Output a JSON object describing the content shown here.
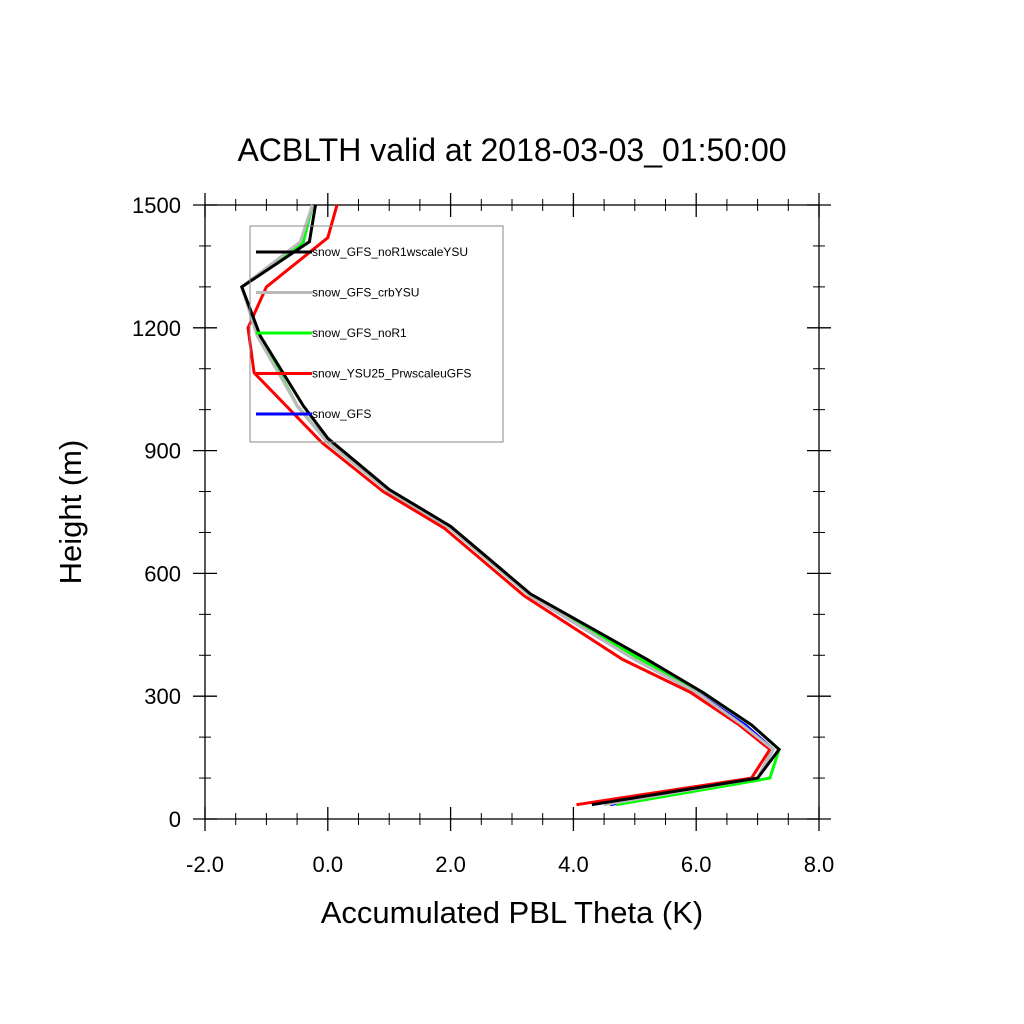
{
  "chart_data": {
    "type": "line",
    "title": "ACBLTH valid at 2018-03-03_01:50:00",
    "xlabel": "Accumulated PBL Theta (K)",
    "ylabel": "Height (m)",
    "xlim": [
      -2.0,
      8.0
    ],
    "ylim": [
      0,
      1500
    ],
    "xticks": [
      -2.0,
      0.0,
      2.0,
      4.0,
      6.0,
      8.0
    ],
    "xtick_labels": [
      "-2.0",
      "0.0",
      "2.0",
      "4.0",
      "6.0",
      "8.0"
    ],
    "yticks": [
      0,
      300,
      600,
      900,
      1200,
      1500
    ],
    "ytick_labels": [
      "0",
      "300",
      "600",
      "900",
      "1200",
      "1500"
    ],
    "legend_placement": "top-left",
    "series": [
      {
        "name": "snow_GFS",
        "color": "#0000ff",
        "points": [
          [
            4.6,
            35
          ],
          [
            7.0,
            100
          ],
          [
            7.25,
            170
          ],
          [
            6.8,
            230
          ],
          [
            6.0,
            310
          ],
          [
            5.0,
            390
          ],
          [
            3.3,
            545
          ],
          [
            2.0,
            710
          ],
          [
            1.0,
            800
          ],
          [
            0.0,
            920
          ],
          [
            -0.5,
            1010
          ],
          [
            -1.15,
            1190
          ],
          [
            -1.4,
            1300
          ],
          [
            -0.4,
            1410
          ],
          [
            -0.25,
            1500
          ]
        ]
      },
      {
        "name": "snow_YSU25_PrwscaleuGFS",
        "color": "#ff0000",
        "points": [
          [
            4.05,
            35
          ],
          [
            6.9,
            100
          ],
          [
            7.2,
            170
          ],
          [
            6.7,
            230
          ],
          [
            5.9,
            310
          ],
          [
            4.8,
            390
          ],
          [
            3.2,
            545
          ],
          [
            1.9,
            710
          ],
          [
            0.9,
            800
          ],
          [
            -0.1,
            920
          ],
          [
            -1.2,
            1090
          ],
          [
            -1.3,
            1200
          ],
          [
            -1.0,
            1300
          ],
          [
            0.0,
            1420
          ],
          [
            0.15,
            1500
          ]
        ]
      },
      {
        "name": "snow_GFS_noR1",
        "color": "#00ff00",
        "points": [
          [
            4.7,
            35
          ],
          [
            7.2,
            100
          ],
          [
            7.35,
            170
          ],
          [
            6.9,
            230
          ],
          [
            6.1,
            310
          ],
          [
            5.1,
            390
          ],
          [
            3.3,
            545
          ],
          [
            2.0,
            710
          ],
          [
            1.0,
            800
          ],
          [
            0.0,
            920
          ],
          [
            -0.5,
            1010
          ],
          [
            -1.15,
            1190
          ],
          [
            -1.4,
            1300
          ],
          [
            -0.4,
            1410
          ],
          [
            -0.25,
            1500
          ]
        ]
      },
      {
        "name": "snow_GFS_crbYSU",
        "color": "#bbbbbb",
        "points": [
          [
            4.5,
            35
          ],
          [
            7.0,
            100
          ],
          [
            7.25,
            170
          ],
          [
            6.75,
            230
          ],
          [
            6.0,
            310
          ],
          [
            5.0,
            390
          ],
          [
            3.3,
            545
          ],
          [
            2.0,
            710
          ],
          [
            1.0,
            800
          ],
          [
            0.0,
            920
          ],
          [
            -0.5,
            1010
          ],
          [
            -1.15,
            1180
          ],
          [
            -1.4,
            1300
          ],
          [
            -0.45,
            1410
          ],
          [
            -0.25,
            1500
          ]
        ]
      },
      {
        "name": "snow_GFS_noR1wscaleYSU",
        "color": "#000000",
        "points": [
          [
            4.3,
            35
          ],
          [
            7.0,
            100
          ],
          [
            7.35,
            170
          ],
          [
            6.9,
            230
          ],
          [
            6.1,
            310
          ],
          [
            5.2,
            390
          ],
          [
            3.3,
            550
          ],
          [
            2.0,
            715
          ],
          [
            1.0,
            805
          ],
          [
            0.0,
            930
          ],
          [
            -0.4,
            1010
          ],
          [
            -1.1,
            1180
          ],
          [
            -1.4,
            1300
          ],
          [
            -0.3,
            1410
          ],
          [
            -0.2,
            1500
          ]
        ]
      }
    ],
    "legend_order": [
      "snow_GFS_noR1wscaleYSU",
      "snow_GFS_crbYSU",
      "snow_GFS_noR1",
      "snow_YSU25_PrwscaleuGFS",
      "snow_GFS"
    ]
  }
}
